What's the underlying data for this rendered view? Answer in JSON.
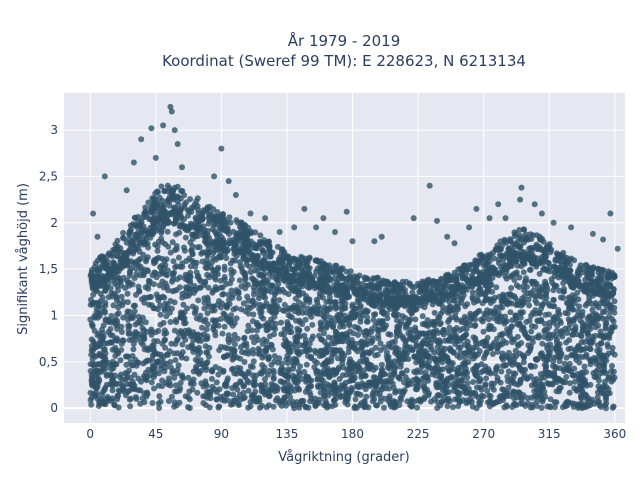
{
  "chart_data": {
    "type": "scatter",
    "title_line1": "År 1979 - 2019",
    "title_line2": "Koordinat (Sweref 99 TM): E 228623, N 6213134",
    "xlabel": "Vågriktning (grader)",
    "ylabel": "Signifikant våghöjd (m)",
    "xlim": [
      -18,
      367
    ],
    "ylim": [
      -0.16,
      3.4
    ],
    "x_ticks": [
      0,
      45,
      90,
      135,
      180,
      225,
      270,
      315,
      360
    ],
    "x_tick_labels": [
      "0",
      "45",
      "90",
      "135",
      "180",
      "225",
      "270",
      "315",
      "360"
    ],
    "y_ticks": [
      0,
      0.5,
      1,
      1.5,
      2,
      2.5,
      3
    ],
    "y_tick_labels": [
      "0",
      "0,5",
      "1",
      "1,5",
      "2",
      "2,5",
      "3"
    ],
    "grid": true,
    "marker_color": "#2f5369",
    "plot_bg": "#e5e8f0",
    "upper_envelope": [
      [
        0,
        1.45
      ],
      [
        10,
        1.6
      ],
      [
        20,
        1.75
      ],
      [
        30,
        1.95
      ],
      [
        40,
        2.15
      ],
      [
        50,
        2.3
      ],
      [
        60,
        2.3
      ],
      [
        70,
        2.2
      ],
      [
        80,
        2.1
      ],
      [
        90,
        2.0
      ],
      [
        100,
        1.95
      ],
      [
        110,
        1.85
      ],
      [
        120,
        1.75
      ],
      [
        135,
        1.6
      ],
      [
        150,
        1.55
      ],
      [
        165,
        1.5
      ],
      [
        180,
        1.4
      ],
      [
        195,
        1.35
      ],
      [
        210,
        1.3
      ],
      [
        225,
        1.3
      ],
      [
        240,
        1.35
      ],
      [
        255,
        1.45
      ],
      [
        270,
        1.6
      ],
      [
        285,
        1.75
      ],
      [
        295,
        1.85
      ],
      [
        305,
        1.8
      ],
      [
        315,
        1.7
      ],
      [
        325,
        1.6
      ],
      [
        335,
        1.5
      ],
      [
        345,
        1.45
      ],
      [
        360,
        1.4
      ]
    ],
    "outliers": [
      [
        55,
        3.25
      ],
      [
        56,
        3.2
      ],
      [
        50,
        3.05
      ],
      [
        42,
        3.02
      ],
      [
        58,
        3.0
      ],
      [
        35,
        2.9
      ],
      [
        60,
        2.85
      ],
      [
        90,
        2.8
      ],
      [
        30,
        2.65
      ],
      [
        45,
        2.7
      ],
      [
        63,
        2.6
      ],
      [
        85,
        2.5
      ],
      [
        10,
        2.5
      ],
      [
        95,
        2.45
      ],
      [
        100,
        2.3
      ],
      [
        25,
        2.35
      ],
      [
        233,
        2.4
      ],
      [
        296,
        2.38
      ],
      [
        295,
        2.25
      ],
      [
        305,
        2.2
      ],
      [
        147,
        2.15
      ],
      [
        176,
        2.12
      ],
      [
        357,
        2.1
      ],
      [
        2,
        2.1
      ],
      [
        160,
        2.05
      ],
      [
        222,
        2.05
      ],
      [
        238,
        2.02
      ],
      [
        274,
        2.05
      ],
      [
        285,
        2.05
      ],
      [
        318,
        2.0
      ],
      [
        330,
        1.95
      ],
      [
        245,
        1.85
      ],
      [
        260,
        1.95
      ],
      [
        200,
        1.85
      ],
      [
        195,
        1.8
      ],
      [
        180,
        1.8
      ],
      [
        250,
        1.78
      ],
      [
        345,
        1.88
      ],
      [
        352,
        1.82
      ],
      [
        362,
        1.72
      ],
      [
        5,
        1.85
      ],
      [
        140,
        1.95
      ],
      [
        130,
        1.9
      ],
      [
        155,
        1.95
      ],
      [
        168,
        1.9
      ],
      [
        110,
        2.1
      ],
      [
        120,
        2.05
      ],
      [
        265,
        2.15
      ],
      [
        280,
        2.2
      ],
      [
        310,
        2.1
      ]
    ]
  }
}
